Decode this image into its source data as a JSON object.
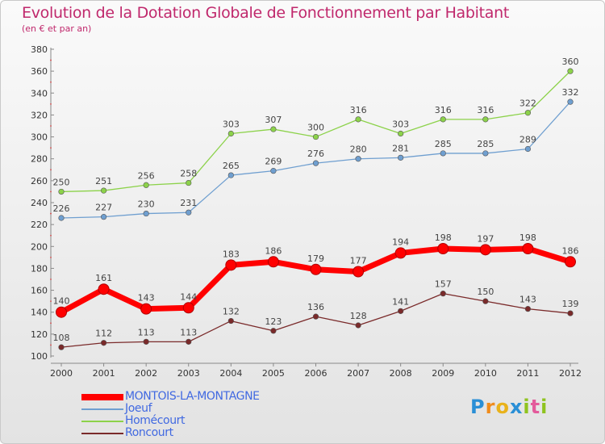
{
  "title": "Evolution de la Dotation Globale de Fonctionnement par Habitant",
  "subtitle": "(en € et par an)",
  "brand": "Proxiti",
  "chart_data": {
    "type": "line",
    "x": [
      "2000",
      "2001",
      "2002",
      "2003",
      "2004",
      "2005",
      "2006",
      "2007",
      "2008",
      "2009",
      "2010",
      "2011",
      "2012"
    ],
    "ylim": [
      100,
      380
    ],
    "yticks": [
      100,
      120,
      140,
      160,
      180,
      200,
      220,
      240,
      260,
      280,
      300,
      320,
      340,
      360,
      380
    ],
    "grid": false,
    "legend_position": "bottom-left",
    "series": [
      {
        "name": "MONTOIS-LA-MONTAGNE",
        "color": "#ff0000",
        "values": [
          140,
          161,
          143,
          144,
          183,
          186,
          179,
          177,
          194,
          198,
          197,
          198,
          186
        ]
      },
      {
        "name": "Joeuf",
        "color": "#6f9fd0",
        "values": [
          226,
          227,
          230,
          231,
          265,
          269,
          276,
          280,
          281,
          285,
          285,
          289,
          332
        ]
      },
      {
        "name": "Homécourt",
        "color": "#8cd24a",
        "values": [
          250,
          251,
          256,
          258,
          303,
          307,
          300,
          316,
          303,
          316,
          316,
          322,
          360
        ]
      },
      {
        "name": "Roncourt",
        "color": "#7a2a2a",
        "values": [
          108,
          112,
          113,
          113,
          132,
          123,
          136,
          128,
          141,
          157,
          150,
          143,
          139
        ]
      }
    ]
  }
}
